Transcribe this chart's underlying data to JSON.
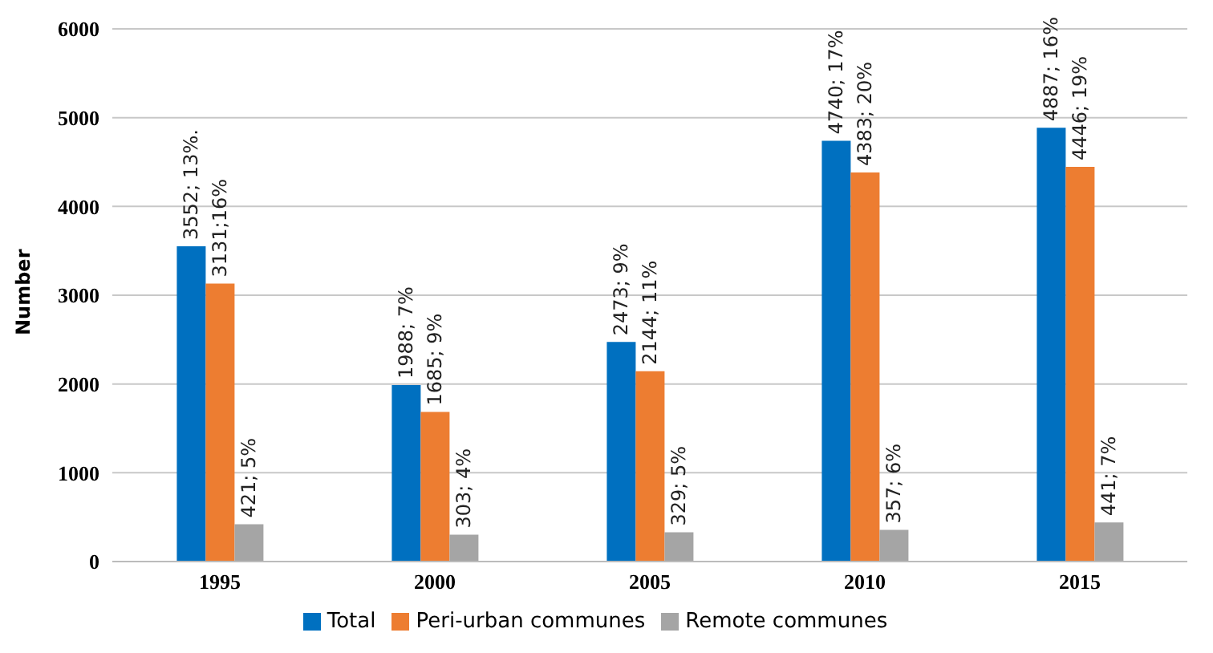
{
  "chart_data": {
    "type": "bar",
    "ylabel": "Number",
    "categories": [
      "1995",
      "2000",
      "2005",
      "2010",
      "2015"
    ],
    "series": [
      {
        "name": "Total",
        "color": "#0070c0",
        "values": [
          3552,
          1988,
          2473,
          4740,
          4887
        ],
        "value_labels": [
          "3552; 13%.",
          "1988; 7%",
          "2473; 9%",
          "4740; 17%",
          "4887; 16%"
        ]
      },
      {
        "name": "Peri-urban communes",
        "color": "#ed7d31",
        "values": [
          3131,
          1685,
          2144,
          4383,
          4446
        ],
        "value_labels": [
          "3131;16%",
          "1685; 9%",
          "2144; 11%",
          "4383; 20%",
          "4446; 19%"
        ]
      },
      {
        "name": "Remote communes",
        "color": "#a5a5a5",
        "values": [
          421,
          303,
          329,
          357,
          441
        ],
        "value_labels": [
          "421; 5%",
          "303; 4%",
          "329; 5%",
          "357; 6%",
          "441; 7%"
        ]
      }
    ],
    "ylim": [
      0,
      6000
    ],
    "yticks": [
      0,
      1000,
      2000,
      3000,
      4000,
      5000,
      6000
    ],
    "grid": "y",
    "legend": "bottom"
  }
}
